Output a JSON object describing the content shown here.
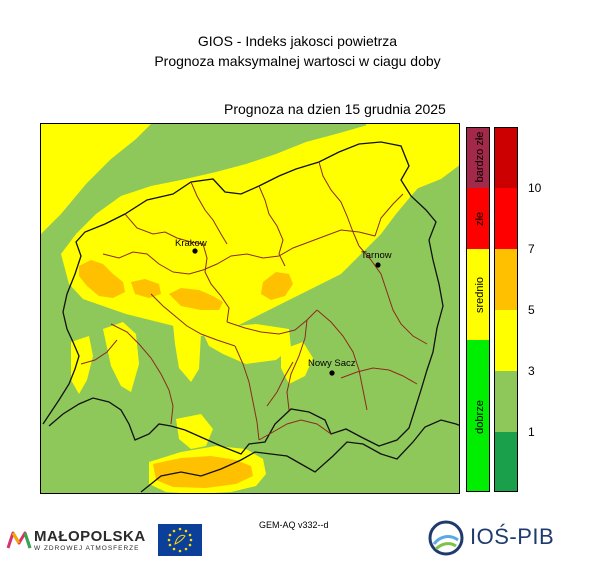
{
  "titles": {
    "line1": "GIOS - Indeks jakosci powietrza",
    "line2": "Prognoza maksymalnej wartosci w ciagu doby",
    "date_label": "Prognoza na dzien  15 grudnia 2025"
  },
  "cities": [
    {
      "name": "Krakow"
    },
    {
      "name": "Tarnow"
    },
    {
      "name": "Nowy Sacz"
    }
  ],
  "categories": [
    {
      "label": "bardzo złe",
      "color": "#a2294a"
    },
    {
      "label": "złe",
      "color": "#ff0000"
    },
    {
      "label": "srednio",
      "color": "#ffff00"
    },
    {
      "label": "dobrze",
      "color": "#00ee00"
    }
  ],
  "scale": {
    "colors": [
      "#cc0000",
      "#ff0000",
      "#ffc000",
      "#ffff00",
      "#8fc85a",
      "#1aa04a"
    ],
    "labels": [
      "10",
      "7",
      "5",
      "3",
      "1"
    ]
  },
  "model_label": "GEM-AQ v332--d",
  "logos": {
    "malopolska_name": "MAŁOPOLSKA",
    "malopolska_sub": "W ZDROWEJ ATMOSFERZE",
    "ios_name": "IOŚ-PIB"
  }
}
